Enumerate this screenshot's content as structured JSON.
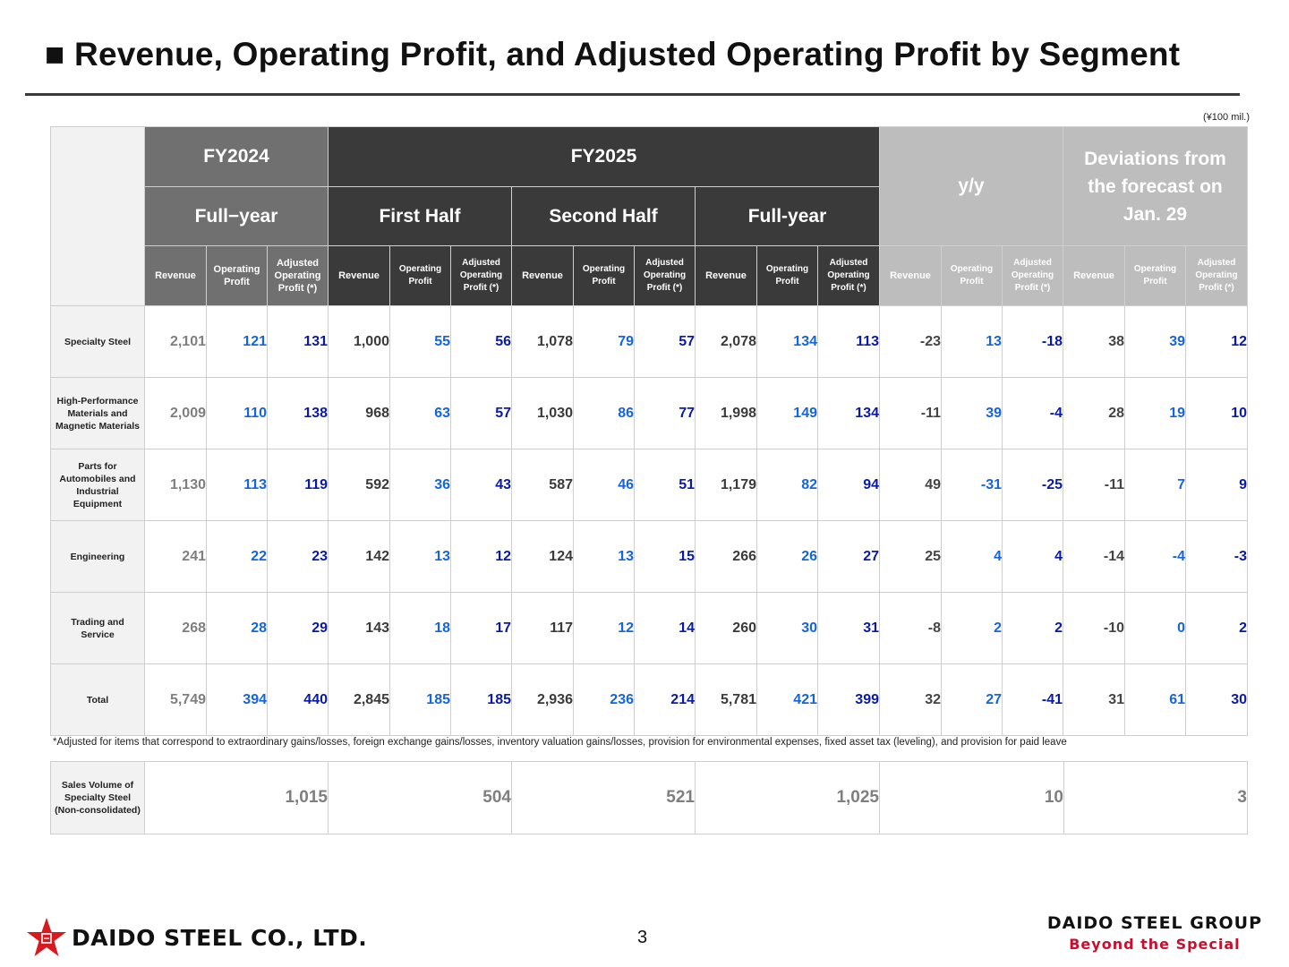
{
  "title": "■ Revenue, Operating Profit, and Adjusted Operating Profit by Segment",
  "unit": "(¥100 mil.)",
  "header": {
    "fy2024": "FY2024",
    "fy2025": "FY2025",
    "yy": "y/y",
    "deviations": "Deviations from the forecast on Jan. 29",
    "fullyear_fy24": "Full−year",
    "first_half": "First Half",
    "second_half": "Second Half",
    "fullyear_fy25": "Full-year",
    "col_revenue": "Revenue",
    "col_operating": "Operating Profit",
    "col_adjusted": "Adjusted Operating Profit (*)"
  },
  "rows": [
    {
      "segment": "Specialty Steel",
      "values": [
        "2,101",
        "121",
        "131",
        "1,000",
        "55",
        "56",
        "1,078",
        "79",
        "57",
        "2,078",
        "134",
        "113",
        "-23",
        "13",
        "-18",
        "38",
        "39",
        "12"
      ]
    },
    {
      "segment": "High-Performance Materials and Magnetic Materials",
      "values": [
        "2,009",
        "110",
        "138",
        "968",
        "63",
        "57",
        "1,030",
        "86",
        "77",
        "1,998",
        "149",
        "134",
        "-11",
        "39",
        "-4",
        "28",
        "19",
        "10"
      ]
    },
    {
      "segment": "Parts for Automobiles and Industrial Equipment",
      "values": [
        "1,130",
        "113",
        "119",
        "592",
        "36",
        "43",
        "587",
        "46",
        "51",
        "1,179",
        "82",
        "94",
        "49",
        "-31",
        "-25",
        "-11",
        "7",
        "9"
      ]
    },
    {
      "segment": "Engineering",
      "values": [
        "241",
        "22",
        "23",
        "142",
        "13",
        "12",
        "124",
        "13",
        "15",
        "266",
        "26",
        "27",
        "25",
        "4",
        "4",
        "-14",
        "-4",
        "-3"
      ]
    },
    {
      "segment": "Trading and Service",
      "values": [
        "268",
        "28",
        "29",
        "143",
        "18",
        "17",
        "117",
        "12",
        "14",
        "260",
        "30",
        "31",
        "-8",
        "2",
        "2",
        "-10",
        "0",
        "2"
      ]
    },
    {
      "segment": "Total",
      "values": [
        "5,749",
        "394",
        "440",
        "2,845",
        "185",
        "185",
        "2,936",
        "236",
        "214",
        "5,781",
        "421",
        "399",
        "32",
        "27",
        "-41",
        "31",
        "61",
        "30"
      ]
    }
  ],
  "footnote": "*Adjusted for items that correspond to extraordinary gains/losses, foreign exchange gains/losses, inventory valuation gains/losses, provision for environmental expenses, fixed asset tax (leveling), and provision for paid leave",
  "sales_volume": {
    "label": "Sales Volume of Specialty Steel (Non-consolidated)",
    "values": [
      "1,015",
      "504",
      "521",
      "1,025",
      "10",
      "3"
    ]
  },
  "page_number": "3",
  "company_logo_text": "DAIDO STEEL CO., LTD.",
  "group_name": "DAIDO STEEL GROUP",
  "tagline": "Beyond the Special",
  "colors": {
    "revenue_gray": "#7f7f7f",
    "op_blue": "#1565e0",
    "adj_navy": "#0a1aa8",
    "dark_header": "#3a3a3a",
    "mid_header": "#707070",
    "light_header": "#bdbdbd",
    "brand_red": "#c8102e"
  },
  "icons": {
    "logo_mark": "red-star-icon"
  }
}
